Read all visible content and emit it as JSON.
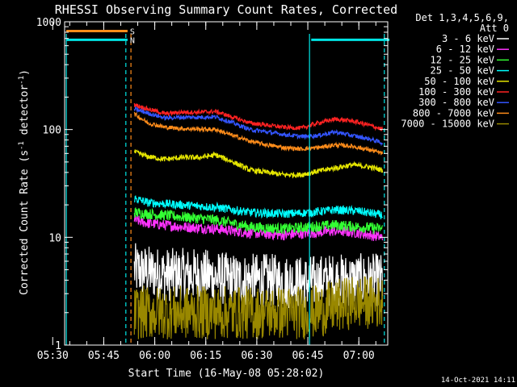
{
  "chart_data": {
    "type": "line",
    "title": "RHESSI Observing Summary Count Rates, Corrected",
    "xlabel": "Start Time (16-May-08 05:28:02)",
    "ylabel_parts": [
      "Corrected Count Rate (s",
      "-1",
      " detector",
      "-1",
      ")"
    ],
    "yscale": "log",
    "ylim": [
      1,
      1000
    ],
    "xlim_minutes": [
      5.5,
      100.5
    ],
    "x_ticks": [
      {
        "label": "05:30",
        "minutes": 2
      },
      {
        "label": "05:45",
        "minutes": 17
      },
      {
        "label": "06:00",
        "minutes": 32
      },
      {
        "label": "06:15",
        "minutes": 47
      },
      {
        "label": "06:30",
        "minutes": 62
      },
      {
        "label": "06:45",
        "minutes": 77
      },
      {
        "label": "07:00",
        "minutes": 92
      }
    ],
    "y_ticks": [
      {
        "label": "1",
        "value": 1
      },
      {
        "label": "10",
        "value": 10
      },
      {
        "label": "100",
        "value": 100
      },
      {
        "label": "1000",
        "value": 1000
      }
    ],
    "legend_header": [
      "Det 1,3,4,5,6,9,",
      "Att 0"
    ],
    "legend_placement": "right",
    "flags": [
      {
        "label": "S",
        "color": "#ff8c1a",
        "segments": [
          [
            6,
            24
          ]
        ],
        "level": 820
      },
      {
        "label": "N",
        "color": "#00e5e5",
        "segments": [
          [
            6,
            24
          ],
          [
            78,
            101
          ]
        ],
        "level": 680
      }
    ],
    "night_lines": [
      {
        "minutes": 6,
        "color": "#00e5e5",
        "style": "solid"
      },
      {
        "minutes": 23.5,
        "color": "#00e5e5",
        "style": "dashed"
      },
      {
        "minutes": 25,
        "color": "#ff8c1a",
        "style": "dashed"
      },
      {
        "minutes": 77.5,
        "color": "#00e5e5",
        "style": "solid"
      },
      {
        "minutes": 99.5,
        "color": "#00e5e5",
        "style": "dashed"
      }
    ],
    "series": [
      {
        "name": "3 - 6 keV",
        "color": "#ffffff",
        "x": [
          26,
          35,
          45,
          55,
          65,
          75,
          85,
          95,
          99
        ],
        "y": [
          5,
          4.5,
          4.5,
          4,
          4,
          3.8,
          4,
          4,
          4
        ],
        "noise": 0.25
      },
      {
        "name": "6 - 12 keV",
        "color": "#ff33ff",
        "x": [
          26,
          30,
          40,
          50,
          60,
          70,
          78,
          85,
          92,
          99
        ],
        "y": [
          14.5,
          13.5,
          12.5,
          12,
          11,
          10.5,
          11,
          11.5,
          11,
          10
        ],
        "noise": 0.05
      },
      {
        "name": "12 - 25 keV",
        "color": "#33ff33",
        "x": [
          26,
          30,
          40,
          50,
          60,
          70,
          78,
          85,
          92,
          99
        ],
        "y": [
          17,
          16.5,
          15.5,
          14.5,
          12.5,
          12,
          12.5,
          13,
          12.5,
          12
        ],
        "noise": 0.05
      },
      {
        "name": "25 - 50 keV",
        "color": "#00ffff",
        "x": [
          26,
          30,
          40,
          50,
          60,
          70,
          78,
          85,
          92,
          99
        ],
        "y": [
          23,
          21,
          20,
          19,
          17,
          16.5,
          17,
          18,
          17.5,
          16
        ],
        "noise": 0.04
      },
      {
        "name": "50 - 100 keV",
        "color": "#e6e600",
        "x": [
          26,
          30,
          35,
          40,
          45,
          50,
          55,
          60,
          65,
          70,
          75,
          80,
          85,
          90,
          95,
          99
        ],
        "y": [
          62,
          56,
          53,
          55,
          55,
          58,
          50,
          42,
          40,
          38,
          38,
          41,
          44,
          47,
          45,
          42
        ],
        "noise": 0.025
      },
      {
        "name": "100 - 300 keV",
        "color": "#ff2222",
        "x": [
          26,
          30,
          35,
          40,
          45,
          50,
          55,
          60,
          65,
          70,
          75,
          80,
          85,
          90,
          95,
          99
        ],
        "y": [
          170,
          155,
          140,
          145,
          145,
          147,
          130,
          115,
          110,
          105,
          103,
          115,
          125,
          120,
          110,
          100
        ],
        "noise": 0.02
      },
      {
        "name": "300 - 800 keV",
        "color": "#3355ff",
        "x": [
          26,
          30,
          35,
          40,
          45,
          50,
          55,
          60,
          65,
          70,
          75,
          80,
          85,
          90,
          95,
          99
        ],
        "y": [
          155,
          142,
          128,
          130,
          130,
          131,
          115,
          100,
          95,
          90,
          86,
          88,
          95,
          88,
          82,
          75
        ],
        "noise": 0.02
      },
      {
        "name": "800 - 7000 keV",
        "color": "#ff8c1a",
        "x": [
          26,
          30,
          35,
          40,
          45,
          50,
          55,
          60,
          65,
          70,
          75,
          80,
          85,
          90,
          95,
          99
        ],
        "y": [
          140,
          115,
          105,
          102,
          101,
          100,
          88,
          78,
          72,
          68,
          66,
          68,
          72,
          70,
          65,
          60
        ],
        "noise": 0.02
      },
      {
        "name": "7000 - 15000 keV",
        "color": "#998800",
        "x": [
          26,
          40,
          50,
          60,
          70,
          77,
          78,
          90,
          99
        ],
        "y": [
          2,
          2,
          2,
          2,
          2,
          2,
          2,
          2.5,
          2.5
        ],
        "noise": 0.25
      }
    ],
    "footer_date": "14-Oct-2021 14:11"
  }
}
